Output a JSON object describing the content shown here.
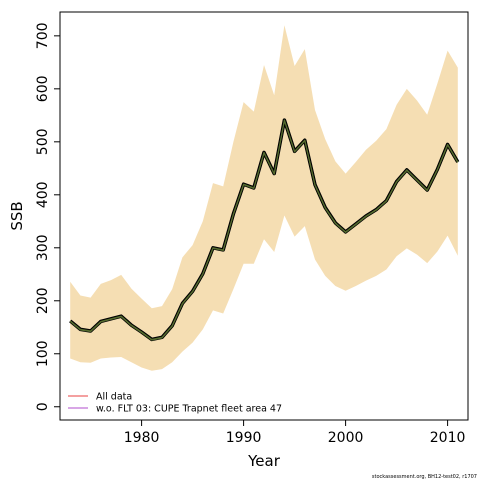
{
  "chart_data": {
    "type": "line",
    "xlabel": "Year",
    "ylabel": "SSB",
    "xlim": [
      1972,
      2012
    ],
    "ylim": [
      -25,
      745
    ],
    "xticks": [
      1980,
      1990,
      2000,
      2010
    ],
    "yticks": [
      0,
      100,
      200,
      300,
      400,
      500,
      600,
      700
    ],
    "grid": false,
    "legend_position": "bottom-left",
    "x": [
      1973,
      1974,
      1975,
      1976,
      1977,
      1978,
      1979,
      1980,
      1981,
      1982,
      1983,
      1984,
      1985,
      1986,
      1987,
      1988,
      1989,
      1990,
      1991,
      1992,
      1993,
      1994,
      1995,
      1996,
      1997,
      1998,
      1999,
      2000,
      2001,
      2002,
      2003,
      2004,
      2005,
      2006,
      2007,
      2008,
      2009,
      2010,
      2011
    ],
    "band": {
      "color": "#f5deb3",
      "upper": [
        236,
        210,
        206,
        232,
        239,
        249,
        223,
        204,
        186,
        190,
        222,
        282,
        305,
        350,
        422,
        416,
        500,
        575,
        557,
        645,
        588,
        720,
        643,
        675,
        560,
        505,
        463,
        440,
        462,
        485,
        502,
        524,
        570,
        600,
        578,
        551,
        610,
        672,
        640
      ],
      "lower": [
        91,
        84,
        83,
        91,
        93,
        94,
        84,
        74,
        68,
        71,
        84,
        104,
        121,
        146,
        182,
        176,
        222,
        270,
        270,
        316,
        292,
        361,
        321,
        341,
        278,
        247,
        228,
        219,
        228,
        238,
        247,
        259,
        284,
        299,
        287,
        271,
        293,
        323,
        285
      ]
    },
    "series": [
      {
        "name": "All data",
        "color": "#f08080",
        "values": [
          162,
          146,
          143,
          161,
          166,
          171,
          154,
          141,
          127,
          131,
          153,
          195,
          218,
          251,
          300,
          296,
          364,
          420,
          413,
          480,
          440,
          541,
          482,
          503,
          419,
          376,
          347,
          330,
          345,
          360,
          372,
          389,
          425,
          447,
          428,
          409,
          448,
          495,
          462
        ]
      },
      {
        "name": "w.o. FLT 03: CUPE Trapnet fleet area 47",
        "color": "#cc88dd",
        "values": [
          161,
          145,
          142,
          160,
          165,
          170,
          153,
          140,
          126,
          130,
          152,
          194,
          217,
          250,
          299,
          295,
          363,
          419,
          412,
          479,
          439,
          540,
          481,
          502,
          418,
          375,
          346,
          329,
          344,
          359,
          371,
          388,
          424,
          446,
          427,
          408,
          447,
          494,
          461
        ]
      }
    ],
    "line_outline_color": "#000000",
    "line_inner_color": "#556b2f",
    "footnote": "stockassessment.org, BH12-test02, r1707"
  }
}
